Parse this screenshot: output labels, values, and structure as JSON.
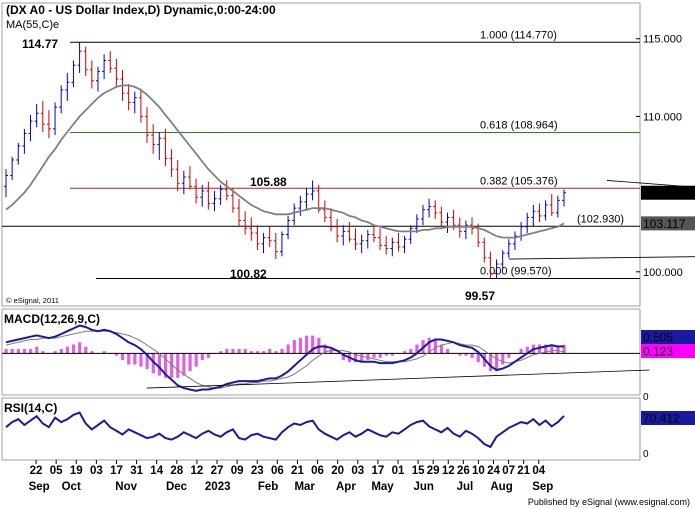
{
  "chart_data": {
    "type": "bar",
    "main": {
      "title": "(DX A0 - US Dollar Index,D) Dynamic,0:00-24:00",
      "ma_label": "MA(55,C)e",
      "copyright": "© eSignal, 2011",
      "ylim": [
        97.8,
        117.3
      ],
      "y_ticks": [
        {
          "v": 115,
          "label": "115.000"
        },
        {
          "v": 110,
          "label": "110.000"
        },
        {
          "v": 100,
          "label": "100.000"
        }
      ],
      "last_price": {
        "v": 105.09,
        "label": "105.090",
        "color": "#000000"
      },
      "ma_value": {
        "v": 103.117,
        "label": "103.117",
        "color": "#555555"
      },
      "fib_levels": [
        {
          "v": 114.77,
          "label": "1.000 (114.770)",
          "color": "#000000"
        },
        {
          "v": 108.964,
          "label": "0.618 (108.964)",
          "color": "#1a8f1a"
        },
        {
          "v": 105.376,
          "label": "0.382 (105.376)",
          "color": "#b22222"
        },
        {
          "v": 99.57,
          "label": "0.000 (99.570)",
          "color": "#000000"
        }
      ],
      "horizontal_level": {
        "v": 102.93,
        "label": "(102.930)"
      },
      "annotations": [
        {
          "label": "114.77",
          "x": 18,
          "v": 114.77
        },
        {
          "label": "105.88",
          "x": 88,
          "v": 105.88
        },
        {
          "label": "100.82",
          "x": 75,
          "v": 100.82
        },
        {
          "label": "99.57",
          "x": 153,
          "v": 99.57
        }
      ],
      "trendlines": [
        {
          "x1": 98,
          "v1": 105.88,
          "x2": 161,
          "v2": 104.0
        },
        {
          "x1": 82,
          "v1": 100.82,
          "x2": 157,
          "v2": 101.2
        }
      ],
      "ohlc": [
        [
          0,
          105.5,
          106.6,
          104.8,
          106.2
        ],
        [
          1,
          106.2,
          107.4,
          105.9,
          107.2
        ],
        [
          2,
          107.2,
          108.3,
          106.9,
          108.1
        ],
        [
          3,
          108.1,
          109.2,
          107.6,
          108.9
        ],
        [
          4,
          108.9,
          110.1,
          108.4,
          109.7
        ],
        [
          5,
          109.7,
          110.8,
          109.3,
          110.2
        ],
        [
          6,
          110.2,
          111.0,
          109.0,
          109.5
        ],
        [
          7,
          109.5,
          110.4,
          108.6,
          109.2
        ],
        [
          8,
          109.2,
          110.9,
          108.8,
          110.6
        ],
        [
          9,
          110.6,
          112.0,
          110.2,
          111.7
        ],
        [
          10,
          111.7,
          112.8,
          111.0,
          112.2
        ],
        [
          11,
          112.2,
          113.6,
          111.9,
          113.3
        ],
        [
          12,
          113.3,
          114.77,
          112.8,
          114.2
        ],
        [
          13,
          114.2,
          114.5,
          112.6,
          113.0
        ],
        [
          14,
          113.0,
          113.6,
          111.8,
          112.3
        ],
        [
          15,
          112.3,
          113.2,
          111.6,
          112.9
        ],
        [
          16,
          112.9,
          114.0,
          112.4,
          113.6
        ],
        [
          17,
          113.6,
          114.2,
          112.8,
          113.1
        ],
        [
          18,
          113.1,
          113.7,
          111.9,
          112.4
        ],
        [
          19,
          112.4,
          113.0,
          111.0,
          111.5
        ],
        [
          20,
          111.5,
          112.1,
          110.4,
          110.9
        ],
        [
          21,
          110.9,
          111.6,
          110.2,
          111.2
        ],
        [
          22,
          111.2,
          111.8,
          109.6,
          110.0
        ],
        [
          23,
          110.0,
          110.6,
          108.3,
          108.8
        ],
        [
          24,
          108.8,
          109.5,
          107.6,
          108.2
        ],
        [
          25,
          108.2,
          109.0,
          107.2,
          108.6
        ],
        [
          26,
          108.6,
          109.2,
          106.8,
          107.3
        ],
        [
          27,
          107.3,
          107.9,
          106.1,
          106.6
        ],
        [
          28,
          106.6,
          107.2,
          105.2,
          105.7
        ],
        [
          29,
          105.7,
          106.5,
          105.0,
          106.1
        ],
        [
          30,
          106.1,
          106.8,
          105.3,
          105.5
        ],
        [
          31,
          105.5,
          106.0,
          104.4,
          104.8
        ],
        [
          32,
          104.8,
          105.6,
          104.2,
          105.2
        ],
        [
          33,
          105.2,
          105.8,
          104.0,
          104.4
        ],
        [
          34,
          104.4,
          105.2,
          103.9,
          104.7
        ],
        [
          35,
          104.7,
          105.6,
          104.3,
          105.3
        ],
        [
          36,
          105.3,
          105.9,
          104.6,
          104.9
        ],
        [
          37,
          104.9,
          105.4,
          103.8,
          104.1
        ],
        [
          38,
          104.1,
          104.7,
          102.9,
          103.3
        ],
        [
          39,
          103.3,
          103.9,
          102.4,
          102.8
        ],
        [
          40,
          102.8,
          103.5,
          102.0,
          102.5
        ],
        [
          41,
          102.5,
          103.0,
          101.4,
          101.8
        ],
        [
          42,
          101.8,
          102.5,
          101.2,
          102.2
        ],
        [
          43,
          102.2,
          102.9,
          101.6,
          102.0
        ],
        [
          44,
          102.0,
          102.5,
          100.82,
          101.3
        ],
        [
          45,
          101.3,
          102.6,
          101.0,
          102.4
        ],
        [
          46,
          102.4,
          103.6,
          102.1,
          103.3
        ],
        [
          47,
          103.3,
          104.4,
          103.0,
          104.1
        ],
        [
          48,
          104.1,
          104.9,
          103.6,
          104.5
        ],
        [
          49,
          104.5,
          105.4,
          104.0,
          105.0
        ],
        [
          50,
          105.0,
          105.88,
          104.6,
          105.2
        ],
        [
          51,
          105.2,
          105.6,
          103.8,
          104.0
        ],
        [
          52,
          104.0,
          104.6,
          103.2,
          103.5
        ],
        [
          53,
          103.5,
          104.1,
          102.6,
          102.9
        ],
        [
          54,
          102.9,
          103.4,
          101.9,
          102.3
        ],
        [
          55,
          102.3,
          103.0,
          101.7,
          102.6
        ],
        [
          56,
          102.6,
          103.2,
          101.9,
          102.1
        ],
        [
          57,
          102.1,
          102.8,
          101.4,
          101.8
        ],
        [
          58,
          101.8,
          102.4,
          101.2,
          102.0
        ],
        [
          59,
          102.0,
          102.7,
          101.5,
          102.4
        ],
        [
          60,
          102.4,
          103.0,
          101.9,
          102.2
        ],
        [
          61,
          102.2,
          102.8,
          101.4,
          101.7
        ],
        [
          62,
          101.7,
          102.3,
          101.1,
          101.5
        ],
        [
          63,
          101.5,
          102.2,
          101.0,
          101.9
        ],
        [
          64,
          101.9,
          102.5,
          101.3,
          101.6
        ],
        [
          65,
          101.6,
          102.3,
          101.2,
          102.1
        ],
        [
          66,
          102.1,
          103.0,
          101.8,
          102.8
        ],
        [
          67,
          102.8,
          103.7,
          102.5,
          103.4
        ],
        [
          68,
          103.4,
          104.3,
          103.0,
          104.0
        ],
        [
          69,
          104.0,
          104.7,
          103.5,
          104.2
        ],
        [
          70,
          104.2,
          104.6,
          103.4,
          103.8
        ],
        [
          71,
          103.8,
          104.2,
          102.9,
          103.2
        ],
        [
          72,
          103.2,
          103.8,
          102.5,
          103.5
        ],
        [
          73,
          103.5,
          104.0,
          102.7,
          103.0
        ],
        [
          74,
          103.0,
          103.5,
          102.2,
          102.6
        ],
        [
          75,
          102.6,
          103.3,
          102.1,
          103.0
        ],
        [
          76,
          103.0,
          103.5,
          102.4,
          102.8
        ],
        [
          77,
          102.8,
          103.1,
          101.6,
          101.9
        ],
        [
          78,
          101.9,
          102.2,
          100.6,
          100.9
        ],
        [
          79,
          100.9,
          101.3,
          99.57,
          99.9
        ],
        [
          80,
          99.9,
          100.8,
          99.6,
          100.5
        ],
        [
          81,
          100.5,
          101.4,
          100.2,
          101.2
        ],
        [
          82,
          101.2,
          102.1,
          100.9,
          101.8
        ],
        [
          83,
          101.8,
          102.6,
          101.4,
          102.3
        ],
        [
          84,
          102.3,
          103.2,
          102.0,
          102.9
        ],
        [
          85,
          102.9,
          103.8,
          102.5,
          103.5
        ],
        [
          86,
          103.5,
          104.3,
          102.9,
          103.9
        ],
        [
          87,
          103.9,
          104.4,
          103.2,
          103.6
        ],
        [
          88,
          103.6,
          104.6,
          103.3,
          104.3
        ],
        [
          89,
          104.3,
          105.0,
          103.6,
          103.8
        ],
        [
          90,
          103.8,
          104.9,
          103.5,
          104.6
        ],
        [
          91,
          104.6,
          105.3,
          104.2,
          105.09
        ]
      ],
      "ma": [
        104.0,
        104.3,
        104.7,
        105.1,
        105.6,
        106.2,
        106.8,
        107.4,
        107.9,
        108.5,
        109.0,
        109.5,
        110.0,
        110.4,
        110.8,
        111.2,
        111.5,
        111.7,
        111.9,
        112.0,
        112.0,
        111.9,
        111.7,
        111.4,
        111.0,
        110.6,
        110.1,
        109.6,
        109.1,
        108.6,
        108.1,
        107.6,
        107.1,
        106.6,
        106.2,
        105.8,
        105.5,
        105.2,
        104.9,
        104.6,
        104.3,
        104.1,
        103.9,
        103.8,
        103.7,
        103.7,
        103.7,
        103.8,
        103.9,
        104.0,
        104.1,
        104.1,
        104.1,
        104.0,
        103.9,
        103.8,
        103.6,
        103.5,
        103.3,
        103.2,
        103.0,
        102.9,
        102.8,
        102.7,
        102.6,
        102.6,
        102.6,
        102.6,
        102.7,
        102.7,
        102.8,
        102.8,
        102.9,
        102.9,
        102.9,
        102.9,
        102.9,
        102.8,
        102.7,
        102.5,
        102.3,
        102.2,
        102.2,
        102.2,
        102.3,
        102.4,
        102.5,
        102.6,
        102.7,
        102.8,
        102.9,
        103.117
      ]
    },
    "macd": {
      "label": "MACD(12,26,9,C)",
      "macd_value": {
        "label": "0.505",
        "color": "#1a1aa0"
      },
      "signal_value": {
        "label": "0.123",
        "color": "#ff00ff"
      },
      "zero_label": "0",
      "ylim": [
        -3.0,
        3.2
      ],
      "trendline": {
        "x1": 28,
        "v1": -2.5,
        "x2": 128,
        "v2": -1.2
      },
      "macd": [
        0.8,
        0.9,
        1.0,
        1.1,
        1.2,
        1.3,
        1.2,
        1.1,
        1.2,
        1.4,
        1.6,
        1.8,
        2.0,
        1.9,
        1.7,
        1.6,
        1.7,
        1.6,
        1.4,
        1.1,
        0.8,
        0.6,
        0.3,
        -0.1,
        -0.6,
        -1.0,
        -1.5,
        -1.9,
        -2.3,
        -2.5,
        -2.6,
        -2.7,
        -2.6,
        -2.6,
        -2.5,
        -2.4,
        -2.2,
        -2.1,
        -2.0,
        -2.0,
        -2.0,
        -2.0,
        -1.9,
        -1.8,
        -1.8,
        -1.6,
        -1.3,
        -0.9,
        -0.5,
        -0.1,
        0.3,
        0.5,
        0.5,
        0.4,
        0.2,
        -0.1,
        -0.3,
        -0.5,
        -0.6,
        -0.6,
        -0.6,
        -0.7,
        -0.7,
        -0.7,
        -0.6,
        -0.5,
        -0.3,
        0.0,
        0.4,
        0.8,
        1.0,
        1.0,
        0.9,
        0.8,
        0.6,
        0.5,
        0.4,
        0.1,
        -0.4,
        -0.9,
        -1.2,
        -1.1,
        -0.9,
        -0.6,
        -0.3,
        0.0,
        0.3,
        0.4,
        0.5,
        0.6,
        0.5,
        0.505
      ],
      "signal": [
        0.6,
        0.7,
        0.8,
        0.9,
        1.0,
        1.0,
        1.1,
        1.1,
        1.1,
        1.2,
        1.3,
        1.4,
        1.5,
        1.6,
        1.6,
        1.6,
        1.6,
        1.6,
        1.5,
        1.4,
        1.3,
        1.1,
        0.9,
        0.6,
        0.3,
        0.0,
        -0.4,
        -0.8,
        -1.2,
        -1.5,
        -1.8,
        -2.1,
        -2.3,
        -2.4,
        -2.5,
        -2.5,
        -2.4,
        -2.3,
        -2.2,
        -2.2,
        -2.1,
        -2.1,
        -2.0,
        -2.0,
        -1.9,
        -1.8,
        -1.7,
        -1.5,
        -1.2,
        -0.9,
        -0.5,
        -0.2,
        0.1,
        0.2,
        0.2,
        0.2,
        0.1,
        -0.1,
        -0.2,
        -0.3,
        -0.4,
        -0.5,
        -0.6,
        -0.6,
        -0.6,
        -0.6,
        -0.5,
        -0.4,
        -0.2,
        0.1,
        0.4,
        0.6,
        0.7,
        0.8,
        0.7,
        0.6,
        0.6,
        0.5,
        0.2,
        -0.1,
        -0.4,
        -0.6,
        -0.7,
        -0.6,
        -0.5,
        -0.3,
        -0.1,
        0.0,
        0.1,
        0.2,
        0.2,
        0.123
      ]
    },
    "rsi": {
      "label": "RSI(14,C)",
      "value": {
        "label": "70.412",
        "color": "#1a1aa0"
      },
      "ylim": [
        10,
        95
      ],
      "values": [
        55,
        62,
        66,
        58,
        64,
        70,
        60,
        55,
        68,
        62,
        66,
        72,
        75,
        60,
        52,
        58,
        64,
        55,
        50,
        45,
        52,
        48,
        44,
        40,
        42,
        46,
        40,
        38,
        42,
        48,
        44,
        40,
        46,
        50,
        45,
        42,
        48,
        52,
        40,
        38,
        44,
        46,
        42,
        40,
        38,
        48,
        55,
        60,
        58,
        62,
        64,
        52,
        46,
        42,
        38,
        44,
        48,
        42,
        46,
        52,
        48,
        44,
        42,
        48,
        46,
        52,
        58,
        62,
        64,
        56,
        52,
        48,
        54,
        46,
        42,
        50,
        46,
        40,
        32,
        28,
        42,
        48,
        54,
        58,
        62,
        60,
        66,
        58,
        64,
        56,
        62,
        70.412
      ]
    },
    "x_axis": {
      "day_ticks": [
        {
          "label": "22",
          "i": 2
        },
        {
          "label": "05",
          "i": 6
        },
        {
          "label": "19",
          "i": 10
        },
        {
          "label": "03",
          "i": 14
        },
        {
          "label": "17",
          "i": 18
        },
        {
          "label": "31",
          "i": 22
        },
        {
          "label": "14",
          "i": 26
        },
        {
          "label": "28",
          "i": 30
        },
        {
          "label": "12",
          "i": 34
        },
        {
          "label": "27",
          "i": 38
        },
        {
          "label": "09",
          "i": 42
        },
        {
          "label": "23",
          "i": 46
        },
        {
          "label": "06",
          "i": 50
        },
        {
          "label": "21",
          "i": 54
        },
        {
          "label": "06",
          "i": 58
        },
        {
          "label": "20",
          "i": 62
        },
        {
          "label": "03",
          "i": 66
        },
        {
          "label": "17",
          "i": 70
        },
        {
          "label": "01",
          "i": 74
        },
        {
          "label": "15",
          "i": 78
        },
        {
          "label": "29",
          "i": 81
        },
        {
          "label": "12",
          "i": 84
        },
        {
          "label": "26",
          "i": 87
        },
        {
          "label": "10",
          "i": 90
        },
        {
          "label": "24",
          "i": 93
        },
        {
          "label": "07",
          "i": 96
        },
        {
          "label": "21",
          "i": 99
        },
        {
          "label": "04",
          "i": 102
        }
      ],
      "month_labels": [
        {
          "label": "Sep",
          "i": 2
        },
        {
          "label": "Oct",
          "i": 9
        },
        {
          "label": "Nov",
          "i": 21
        },
        {
          "label": "Dec",
          "i": 32
        },
        {
          "label": "2023",
          "i": 41
        },
        {
          "label": "Feb",
          "i": 52
        },
        {
          "label": "Mar",
          "i": 60
        },
        {
          "label": "Apr",
          "i": 69
        },
        {
          "label": "May",
          "i": 77
        },
        {
          "label": "Jun",
          "i": 86
        },
        {
          "label": "Jul",
          "i": 95
        },
        {
          "label": "Aug",
          "i": 103
        },
        {
          "label": "Sep",
          "i": 112
        }
      ]
    },
    "footer": "Published by eSignal (www.esignal.com)"
  }
}
